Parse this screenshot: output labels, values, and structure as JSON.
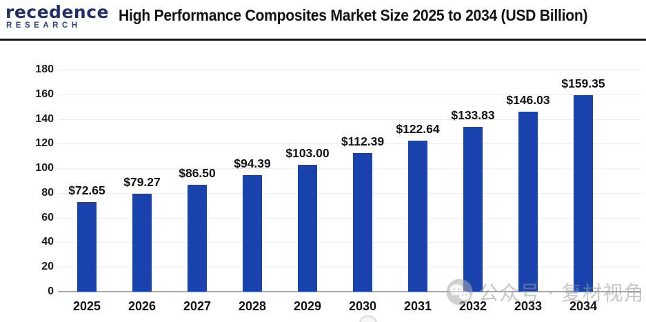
{
  "header": {
    "logo": {
      "icon": "pinwheel-p-icon",
      "brand_text": "recedence",
      "brand_sub": "RESEARCH"
    },
    "title": "High Performance Composites Market Size 2025 to 2034 (USD Billion)"
  },
  "chart_data": {
    "type": "bar",
    "title": "High Performance Composites Market Size 2025 to 2034 (USD Billion)",
    "categories": [
      "2025",
      "2026",
      "2027",
      "2028",
      "2029",
      "2030",
      "2031",
      "2032",
      "2033",
      "2034"
    ],
    "values": [
      72.65,
      79.27,
      86.5,
      94.39,
      103.0,
      112.39,
      122.64,
      133.83,
      146.03,
      159.35
    ],
    "value_labels": [
      "$72.65",
      "$79.27",
      "$86.50",
      "$94.39",
      "$103.00",
      "$112.39",
      "$122.64",
      "$133.83",
      "$146.03",
      "$159.35"
    ],
    "unit": "USD Billion",
    "xlabel": "",
    "ylabel": "",
    "ylim": [
      0,
      180
    ],
    "yticks": [
      0,
      20,
      40,
      60,
      80,
      100,
      120,
      140,
      160,
      180
    ],
    "grid": true,
    "legend_position": "none",
    "bar_color": "#1a43ae"
  },
  "watermark": {
    "icon": "wechat-icon",
    "text": "公众号 · 复材视角"
  },
  "colors": {
    "bar": "#1a43ae",
    "logo_navy": "#223069",
    "logo_blue": "#4a86c8",
    "logo_light_blue": "#8fb6e0",
    "title_text": "#121212",
    "divider": "#161616",
    "gridline": "#ebebeb",
    "baseline": "#a9a9a9",
    "watermark_gray": "#9a9a9a"
  }
}
